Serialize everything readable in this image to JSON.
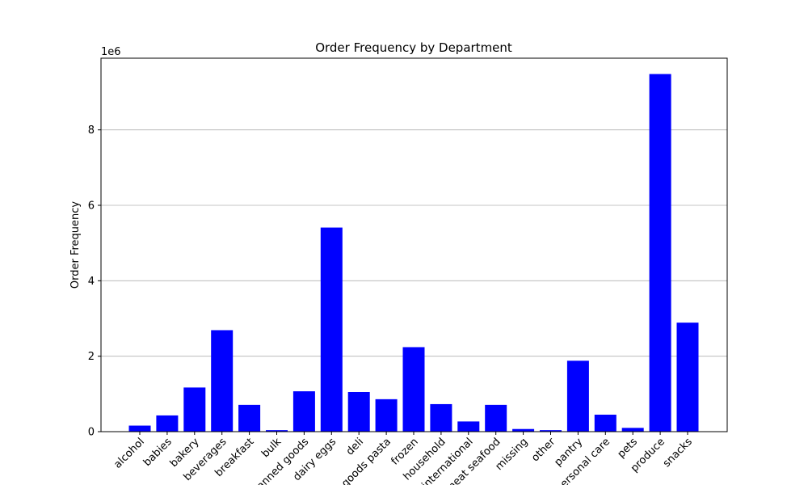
{
  "chart_data": {
    "type": "bar",
    "title": "Order Frequency by Department",
    "xlabel": "",
    "ylabel": "Order Frequency",
    "scale_label": "1e6",
    "ylim": [
      0,
      9.9
    ],
    "yticks": [
      0,
      2,
      4,
      6,
      8
    ],
    "grid": "y",
    "bar_color": "#0000ff",
    "categories": [
      "alcohol",
      "babies",
      "bakery",
      "beverages",
      "breakfast",
      "bulk",
      "canned goods",
      "dairy eggs",
      "deli",
      "dry goods pasta",
      "frozen",
      "household",
      "international",
      "meat seafood",
      "missing",
      "other",
      "pantry",
      "personal care",
      "pets",
      "produce",
      "snacks"
    ],
    "values": [
      0.16,
      0.43,
      1.17,
      2.69,
      0.71,
      0.04,
      1.07,
      5.41,
      1.05,
      0.86,
      2.24,
      0.73,
      0.27,
      0.71,
      0.07,
      0.04,
      1.88,
      0.45,
      0.1,
      9.48,
      2.89
    ]
  }
}
